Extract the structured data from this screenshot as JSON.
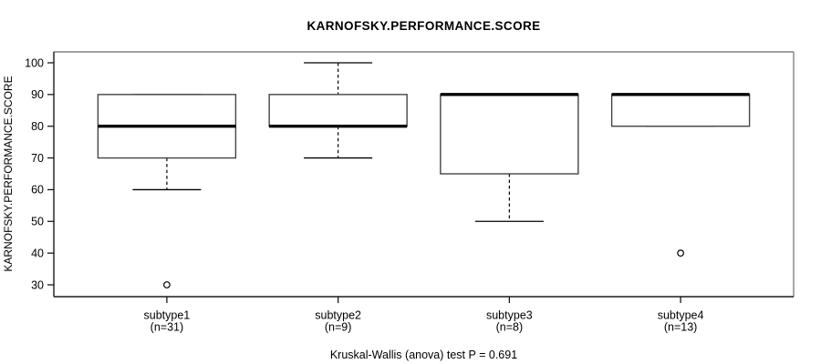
{
  "chart_data": {
    "type": "boxplot",
    "title": "KARNOFSKY.PERFORMANCE.SCORE",
    "ylabel": "KARNOFSKY.PERFORMANCE.SCORE",
    "xlabel": "",
    "caption": "Kruskal-Wallis (anova) test P = 0.691",
    "y_axis": {
      "min": 30,
      "max": 100,
      "ticks": [
        30,
        40,
        50,
        60,
        70,
        80,
        90,
        100
      ]
    },
    "grid": false,
    "legend": "none",
    "groups": [
      {
        "label": "subtype1",
        "n_label": "(n=31)",
        "stats": {
          "whisker_low": 60,
          "q1": 70,
          "median": 80,
          "q3": 90,
          "whisker_high": 90
        },
        "outliers": [
          30
        ]
      },
      {
        "label": "subtype2",
        "n_label": "(n=9)",
        "stats": {
          "whisker_low": 70,
          "q1": 80,
          "median": 80,
          "q3": 90,
          "whisker_high": 100
        },
        "outliers": []
      },
      {
        "label": "subtype3",
        "n_label": "(n=8)",
        "stats": {
          "whisker_low": 50,
          "q1": 65,
          "median": 90,
          "q3": 90,
          "whisker_high": 90
        },
        "outliers": []
      },
      {
        "label": "subtype4",
        "n_label": "(n=13)",
        "stats": {
          "whisker_low": 80,
          "q1": 80,
          "median": 90,
          "q3": 90,
          "whisker_high": 90
        },
        "outliers": [
          40
        ]
      }
    ],
    "colors": {
      "background": "#ffffff",
      "box_border": "#444444",
      "box_fill": "#ffffff",
      "median": "#000000",
      "whisker": "#000000",
      "axis_dark": "#1a1a1a",
      "frame_light": "#828282",
      "text": "#000000"
    }
  }
}
